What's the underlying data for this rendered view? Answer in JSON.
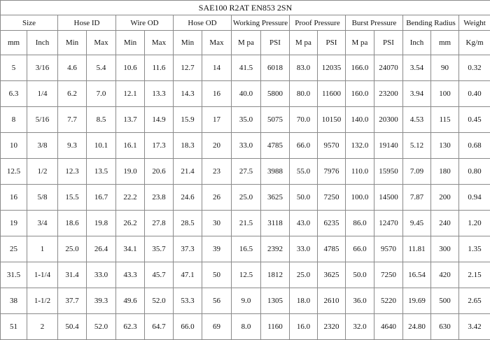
{
  "table": {
    "title": "SAE100 R2AT EN853 2SN",
    "groups": [
      "Size",
      "Hose ID",
      "Wire OD",
      "Hose OD",
      "Working Pressure",
      "Proof Pressure",
      "Burst Pressure",
      "Bending Radius",
      "Weight"
    ],
    "subheaders": [
      "mm",
      "Inch",
      "Min",
      "Max",
      "Min",
      "Max",
      "Min",
      "Max",
      "M pa",
      "PSI",
      "M pa",
      "PSI",
      "M pa",
      "PSI",
      "Inch",
      "mm",
      "Kg/m"
    ],
    "rows": [
      [
        "5",
        "3/16",
        "4.6",
        "5.4",
        "10.6",
        "11.6",
        "12.7",
        "14",
        "41.5",
        "6018",
        "83.0",
        "12035",
        "166.0",
        "24070",
        "3.54",
        "90",
        "0.32"
      ],
      [
        "6.3",
        "1/4",
        "6.2",
        "7.0",
        "12.1",
        "13.3",
        "14.3",
        "16",
        "40.0",
        "5800",
        "80.0",
        "11600",
        "160.0",
        "23200",
        "3.94",
        "100",
        "0.40"
      ],
      [
        "8",
        "5/16",
        "7.7",
        "8.5",
        "13.7",
        "14.9",
        "15.9",
        "17",
        "35.0",
        "5075",
        "70.0",
        "10150",
        "140.0",
        "20300",
        "4.53",
        "115",
        "0.45"
      ],
      [
        "10",
        "3/8",
        "9.3",
        "10.1",
        "16.1",
        "17.3",
        "18.3",
        "20",
        "33.0",
        "4785",
        "66.0",
        "9570",
        "132.0",
        "19140",
        "5.12",
        "130",
        "0.68"
      ],
      [
        "12.5",
        "1/2",
        "12.3",
        "13.5",
        "19.0",
        "20.6",
        "21.4",
        "23",
        "27.5",
        "3988",
        "55.0",
        "7976",
        "110.0",
        "15950",
        "7.09",
        "180",
        "0.80"
      ],
      [
        "16",
        "5/8",
        "15.5",
        "16.7",
        "22.2",
        "23.8",
        "24.6",
        "26",
        "25.0",
        "3625",
        "50.0",
        "7250",
        "100.0",
        "14500",
        "7.87",
        "200",
        "0.94"
      ],
      [
        "19",
        "3/4",
        "18.6",
        "19.8",
        "26.2",
        "27.8",
        "28.5",
        "30",
        "21.5",
        "3118",
        "43.0",
        "6235",
        "86.0",
        "12470",
        "9.45",
        "240",
        "1.20"
      ],
      [
        "25",
        "1",
        "25.0",
        "26.4",
        "34.1",
        "35.7",
        "37.3",
        "39",
        "16.5",
        "2392",
        "33.0",
        "4785",
        "66.0",
        "9570",
        "11.81",
        "300",
        "1.35"
      ],
      [
        "31.5",
        "1-1/4",
        "31.4",
        "33.0",
        "43.3",
        "45.7",
        "47.1",
        "50",
        "12.5",
        "1812",
        "25.0",
        "3625",
        "50.0",
        "7250",
        "16.54",
        "420",
        "2.15"
      ],
      [
        "38",
        "1-1/2",
        "37.7",
        "39.3",
        "49.6",
        "52.0",
        "53.3",
        "56",
        "9.0",
        "1305",
        "18.0",
        "2610",
        "36.0",
        "5220",
        "19.69",
        "500",
        "2.65"
      ],
      [
        "51",
        "2",
        "50.4",
        "52.0",
        "62.3",
        "64.7",
        "66.0",
        "69",
        "8.0",
        "1160",
        "16.0",
        "2320",
        "32.0",
        "4640",
        "24.80",
        "630",
        "3.42"
      ]
    ]
  }
}
